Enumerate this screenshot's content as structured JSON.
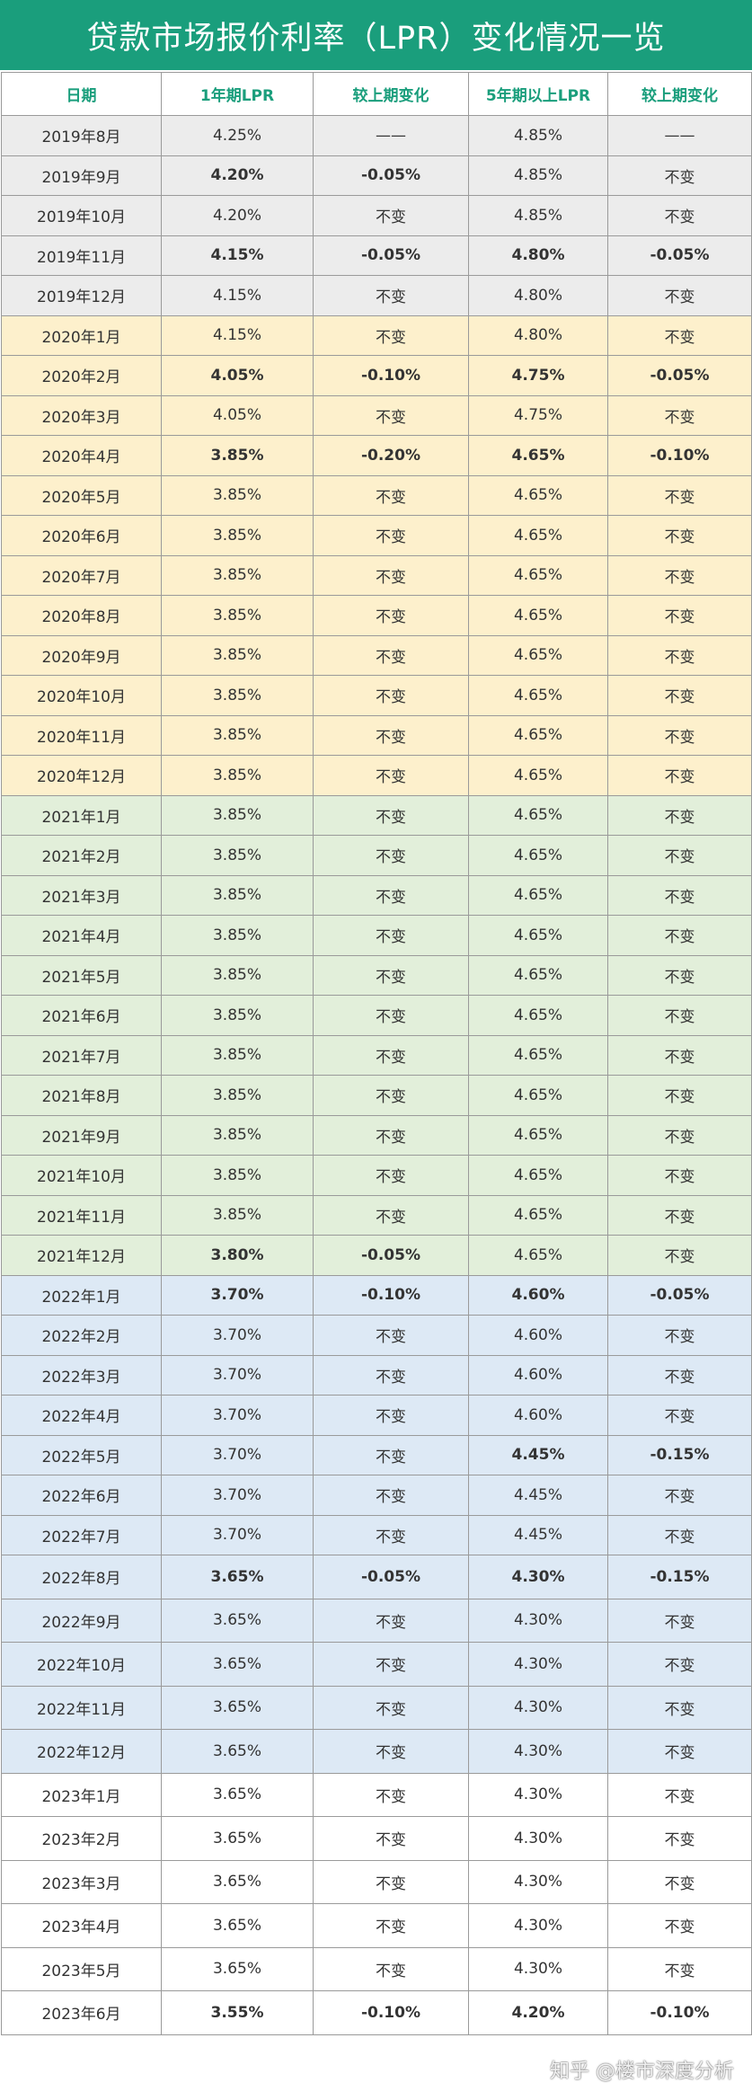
{
  "title": "贷款市场报价利率（LPR）变化情况一览",
  "columns": [
    "日期",
    "1年期LPR",
    "较上期变化",
    "5年期以上LPR",
    "较上期变化"
  ],
  "colors": {
    "header_green": "#1a9e7c",
    "highlight_orange": "#ee7a2b",
    "band_2019": "#ececec",
    "band_2020": "#fdf0cc",
    "band_2021": "#e2efda",
    "band_2022": "#dde9f5",
    "band_2023": "#ffffff"
  },
  "rows": [
    {
      "date": "2019年8月",
      "lpr1": "4.25%",
      "chg1": "——",
      "lpr5": "4.85%",
      "chg5": "——",
      "band": "y2019",
      "hl1": false,
      "hl5": false
    },
    {
      "date": "2019年9月",
      "lpr1": "4.20%",
      "chg1": "-0.05%",
      "lpr5": "4.85%",
      "chg5": "不变",
      "band": "y2019",
      "hl1": true,
      "hl5": false
    },
    {
      "date": "2019年10月",
      "lpr1": "4.20%",
      "chg1": "不变",
      "lpr5": "4.85%",
      "chg5": "不变",
      "band": "y2019",
      "hl1": false,
      "hl5": false
    },
    {
      "date": "2019年11月",
      "lpr1": "4.15%",
      "chg1": "-0.05%",
      "lpr5": "4.80%",
      "chg5": "-0.05%",
      "band": "y2019",
      "hl1": true,
      "hl5": true
    },
    {
      "date": "2019年12月",
      "lpr1": "4.15%",
      "chg1": "不变",
      "lpr5": "4.80%",
      "chg5": "不变",
      "band": "y2019",
      "hl1": false,
      "hl5": false
    },
    {
      "date": "2020年1月",
      "lpr1": "4.15%",
      "chg1": "不变",
      "lpr5": "4.80%",
      "chg5": "不变",
      "band": "y2020",
      "hl1": false,
      "hl5": false
    },
    {
      "date": "2020年2月",
      "lpr1": "4.05%",
      "chg1": "-0.10%",
      "lpr5": "4.75%",
      "chg5": "-0.05%",
      "band": "y2020",
      "hl1": true,
      "hl5": true
    },
    {
      "date": "2020年3月",
      "lpr1": "4.05%",
      "chg1": "不变",
      "lpr5": "4.75%",
      "chg5": "不变",
      "band": "y2020",
      "hl1": false,
      "hl5": false
    },
    {
      "date": "2020年4月",
      "lpr1": "3.85%",
      "chg1": "-0.20%",
      "lpr5": "4.65%",
      "chg5": "-0.10%",
      "band": "y2020",
      "hl1": true,
      "hl5": true
    },
    {
      "date": "2020年5月",
      "lpr1": "3.85%",
      "chg1": "不变",
      "lpr5": "4.65%",
      "chg5": "不变",
      "band": "y2020",
      "hl1": false,
      "hl5": false
    },
    {
      "date": "2020年6月",
      "lpr1": "3.85%",
      "chg1": "不变",
      "lpr5": "4.65%",
      "chg5": "不变",
      "band": "y2020",
      "hl1": false,
      "hl5": false
    },
    {
      "date": "2020年7月",
      "lpr1": "3.85%",
      "chg1": "不变",
      "lpr5": "4.65%",
      "chg5": "不变",
      "band": "y2020",
      "hl1": false,
      "hl5": false
    },
    {
      "date": "2020年8月",
      "lpr1": "3.85%",
      "chg1": "不变",
      "lpr5": "4.65%",
      "chg5": "不变",
      "band": "y2020",
      "hl1": false,
      "hl5": false
    },
    {
      "date": "2020年9月",
      "lpr1": "3.85%",
      "chg1": "不变",
      "lpr5": "4.65%",
      "chg5": "不变",
      "band": "y2020",
      "hl1": false,
      "hl5": false
    },
    {
      "date": "2020年10月",
      "lpr1": "3.85%",
      "chg1": "不变",
      "lpr5": "4.65%",
      "chg5": "不变",
      "band": "y2020",
      "hl1": false,
      "hl5": false
    },
    {
      "date": "2020年11月",
      "lpr1": "3.85%",
      "chg1": "不变",
      "lpr5": "4.65%",
      "chg5": "不变",
      "band": "y2020",
      "hl1": false,
      "hl5": false
    },
    {
      "date": "2020年12月",
      "lpr1": "3.85%",
      "chg1": "不变",
      "lpr5": "4.65%",
      "chg5": "不变",
      "band": "y2020",
      "hl1": false,
      "hl5": false
    },
    {
      "date": "2021年1月",
      "lpr1": "3.85%",
      "chg1": "不变",
      "lpr5": "4.65%",
      "chg5": "不变",
      "band": "y2021",
      "hl1": false,
      "hl5": false
    },
    {
      "date": "2021年2月",
      "lpr1": "3.85%",
      "chg1": "不变",
      "lpr5": "4.65%",
      "chg5": "不变",
      "band": "y2021",
      "hl1": false,
      "hl5": false
    },
    {
      "date": "2021年3月",
      "lpr1": "3.85%",
      "chg1": "不变",
      "lpr5": "4.65%",
      "chg5": "不变",
      "band": "y2021",
      "hl1": false,
      "hl5": false
    },
    {
      "date": "2021年4月",
      "lpr1": "3.85%",
      "chg1": "不变",
      "lpr5": "4.65%",
      "chg5": "不变",
      "band": "y2021",
      "hl1": false,
      "hl5": false
    },
    {
      "date": "2021年5月",
      "lpr1": "3.85%",
      "chg1": "不变",
      "lpr5": "4.65%",
      "chg5": "不变",
      "band": "y2021",
      "hl1": false,
      "hl5": false
    },
    {
      "date": "2021年6月",
      "lpr1": "3.85%",
      "chg1": "不变",
      "lpr5": "4.65%",
      "chg5": "不变",
      "band": "y2021",
      "hl1": false,
      "hl5": false
    },
    {
      "date": "2021年7月",
      "lpr1": "3.85%",
      "chg1": "不变",
      "lpr5": "4.65%",
      "chg5": "不变",
      "band": "y2021",
      "hl1": false,
      "hl5": false
    },
    {
      "date": "2021年8月",
      "lpr1": "3.85%",
      "chg1": "不变",
      "lpr5": "4.65%",
      "chg5": "不变",
      "band": "y2021",
      "hl1": false,
      "hl5": false
    },
    {
      "date": "2021年9月",
      "lpr1": "3.85%",
      "chg1": "不变",
      "lpr5": "4.65%",
      "chg5": "不变",
      "band": "y2021",
      "hl1": false,
      "hl5": false
    },
    {
      "date": "2021年10月",
      "lpr1": "3.85%",
      "chg1": "不变",
      "lpr5": "4.65%",
      "chg5": "不变",
      "band": "y2021",
      "hl1": false,
      "hl5": false
    },
    {
      "date": "2021年11月",
      "lpr1": "3.85%",
      "chg1": "不变",
      "lpr5": "4.65%",
      "chg5": "不变",
      "band": "y2021",
      "hl1": false,
      "hl5": false
    },
    {
      "date": "2021年12月",
      "lpr1": "3.80%",
      "chg1": "-0.05%",
      "lpr5": "4.65%",
      "chg5": "不变",
      "band": "y2021",
      "hl1": true,
      "hl5": false
    },
    {
      "date": "2022年1月",
      "lpr1": "3.70%",
      "chg1": "-0.10%",
      "lpr5": "4.60%",
      "chg5": "-0.05%",
      "band": "y2022",
      "hl1": true,
      "hl5": true
    },
    {
      "date": "2022年2月",
      "lpr1": "3.70%",
      "chg1": "不变",
      "lpr5": "4.60%",
      "chg5": "不变",
      "band": "y2022",
      "hl1": false,
      "hl5": false
    },
    {
      "date": "2022年3月",
      "lpr1": "3.70%",
      "chg1": "不变",
      "lpr5": "4.60%",
      "chg5": "不变",
      "band": "y2022",
      "hl1": false,
      "hl5": false
    },
    {
      "date": "2022年4月",
      "lpr1": "3.70%",
      "chg1": "不变",
      "lpr5": "4.60%",
      "chg5": "不变",
      "band": "y2022",
      "hl1": false,
      "hl5": false
    },
    {
      "date": "2022年5月",
      "lpr1": "3.70%",
      "chg1": "不变",
      "lpr5": "4.45%",
      "chg5": "-0.15%",
      "band": "y2022",
      "hl1": false,
      "hl5": true
    },
    {
      "date": "2022年6月",
      "lpr1": "3.70%",
      "chg1": "不变",
      "lpr5": "4.45%",
      "chg5": "不变",
      "band": "y2022",
      "hl1": false,
      "hl5": false
    },
    {
      "date": "2022年7月",
      "lpr1": "3.70%",
      "chg1": "不变",
      "lpr5": "4.45%",
      "chg5": "不变",
      "band": "y2022",
      "hl1": false,
      "hl5": false
    },
    {
      "date": "2022年8月",
      "lpr1": "3.65%",
      "chg1": "-0.05%",
      "lpr5": "4.30%",
      "chg5": "-0.15%",
      "band": "y2022",
      "hl1": true,
      "hl5": true
    },
    {
      "date": "2022年9月",
      "lpr1": "3.65%",
      "chg1": "不变",
      "lpr5": "4.30%",
      "chg5": "不变",
      "band": "y2022",
      "hl1": false,
      "hl5": false
    },
    {
      "date": "2022年10月",
      "lpr1": "3.65%",
      "chg1": "不变",
      "lpr5": "4.30%",
      "chg5": "不变",
      "band": "y2022",
      "hl1": false,
      "hl5": false
    },
    {
      "date": "2022年11月",
      "lpr1": "3.65%",
      "chg1": "不变",
      "lpr5": "4.30%",
      "chg5": "不变",
      "band": "y2022",
      "hl1": false,
      "hl5": false
    },
    {
      "date": "2022年12月",
      "lpr1": "3.65%",
      "chg1": "不变",
      "lpr5": "4.30%",
      "chg5": "不变",
      "band": "y2022",
      "hl1": false,
      "hl5": false
    },
    {
      "date": "2023年1月",
      "lpr1": "3.65%",
      "chg1": "不变",
      "lpr5": "4.30%",
      "chg5": "不变",
      "band": "y2023",
      "hl1": false,
      "hl5": false
    },
    {
      "date": "2023年2月",
      "lpr1": "3.65%",
      "chg1": "不变",
      "lpr5": "4.30%",
      "chg5": "不变",
      "band": "y2023",
      "hl1": false,
      "hl5": false
    },
    {
      "date": "2023年3月",
      "lpr1": "3.65%",
      "chg1": "不变",
      "lpr5": "4.30%",
      "chg5": "不变",
      "band": "y2023",
      "hl1": false,
      "hl5": false
    },
    {
      "date": "2023年4月",
      "lpr1": "3.65%",
      "chg1": "不变",
      "lpr5": "4.30%",
      "chg5": "不变",
      "band": "y2023",
      "hl1": false,
      "hl5": false
    },
    {
      "date": "2023年5月",
      "lpr1": "3.65%",
      "chg1": "不变",
      "lpr5": "4.30%",
      "chg5": "不变",
      "band": "y2023",
      "hl1": false,
      "hl5": false
    },
    {
      "date": "2023年6月",
      "lpr1": "3.55%",
      "chg1": "-0.10%",
      "lpr5": "4.20%",
      "chg5": "-0.10%",
      "band": "y2023",
      "hl1": true,
      "hl5": true
    }
  ],
  "watermark": "知乎 @楼市深度分析"
}
